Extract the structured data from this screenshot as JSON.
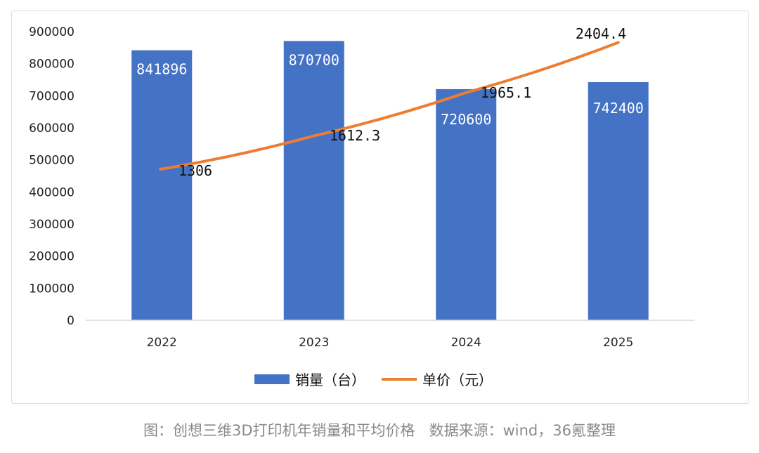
{
  "chart_data": {
    "type": "bar",
    "categories": [
      "2022",
      "2023",
      "2024",
      "2025"
    ],
    "ylim": [
      0,
      900000
    ],
    "yticks": [
      "0",
      "100000",
      "200000",
      "300000",
      "400000",
      "500000",
      "600000",
      "700000",
      "800000",
      "900000"
    ],
    "series": [
      {
        "name": "销量（台）",
        "type": "bar",
        "color": "#4472c4",
        "values": [
          841896,
          870700,
          720600,
          742400
        ],
        "labels": [
          "841896",
          "870700",
          "720600",
          "742400"
        ]
      },
      {
        "name": "单价（元）",
        "type": "line",
        "color": "#ed7d31",
        "values": [
          1306,
          1612.3,
          1965.1,
          2404.4
        ],
        "labels": [
          "1306",
          "1612.3",
          "1965.1",
          "2404.4"
        ]
      }
    ],
    "legend_position": "bottom",
    "grid": false
  },
  "caption": {
    "figure": "图：创想三维3D打印机年销量和平均价格",
    "source": "数据来源：wind，36氪整理"
  }
}
